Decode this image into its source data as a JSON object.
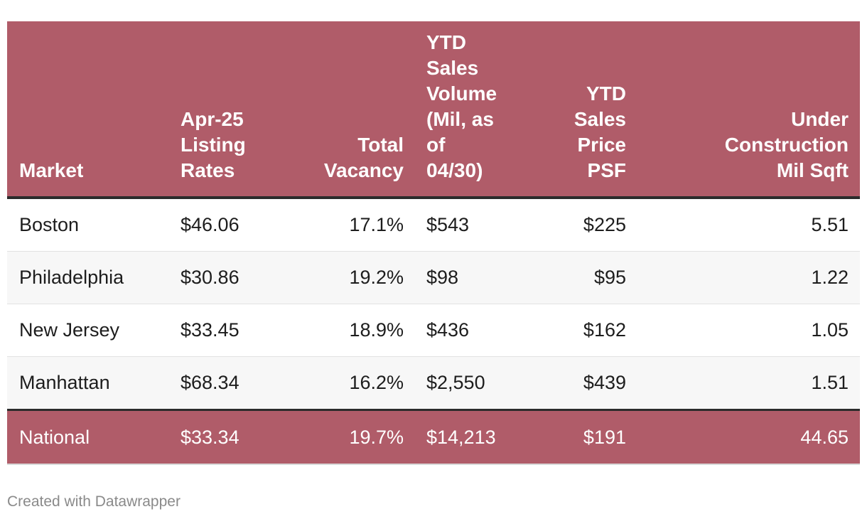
{
  "chart_data": {
    "type": "table",
    "columns": [
      {
        "key": "market",
        "label": "Market",
        "align": "left"
      },
      {
        "key": "listing",
        "label": "Apr-25 Listing Rates",
        "align": "left"
      },
      {
        "key": "vacancy",
        "label": "Total Vacancy",
        "align": "right"
      },
      {
        "key": "volume",
        "label": "YTD Sales Volume (Mil, as of 04/30)",
        "align": "left"
      },
      {
        "key": "price",
        "label": "YTD Sales Price PSF",
        "align": "right"
      },
      {
        "key": "construction",
        "label": "Under Construction Mil Sqft",
        "align": "right"
      }
    ],
    "header_lines": {
      "market": [
        "Market"
      ],
      "listing": [
        "Apr-25",
        "Listing",
        "Rates"
      ],
      "vacancy": [
        "Total",
        "Vacancy"
      ],
      "volume": [
        "YTD",
        "Sales",
        "Volume",
        "(Mil, as",
        "of",
        "04/30)"
      ],
      "price": [
        "YTD",
        "Sales",
        "Price",
        "PSF"
      ],
      "construction": [
        "Under",
        "Construction",
        "Mil Sqft"
      ]
    },
    "rows": [
      {
        "market": "Boston",
        "listing": "$46.06",
        "vacancy": "17.1%",
        "volume": "$543",
        "price": "$225",
        "construction": "5.51"
      },
      {
        "market": "Philadelphia",
        "listing": "$30.86",
        "vacancy": "19.2%",
        "volume": "$98",
        "price": "$95",
        "construction": "1.22"
      },
      {
        "market": "New Jersey",
        "listing": "$33.45",
        "vacancy": "18.9%",
        "volume": "$436",
        "price": "$162",
        "construction": "1.05"
      },
      {
        "market": "Manhattan",
        "listing": "$68.34",
        "vacancy": "16.2%",
        "volume": "$2,550",
        "price": "$439",
        "construction": "1.51"
      }
    ],
    "total_row": {
      "market": "National",
      "listing": "$33.34",
      "vacancy": "19.7%",
      "volume": "$14,213",
      "price": "$191",
      "construction": "44.65"
    },
    "colors": {
      "header_bg": "#b05c69",
      "header_text": "#ffffff",
      "stripe": "#f7f7f7",
      "rule": "#2b2b2b"
    }
  },
  "footer": {
    "credit": "Created with Datawrapper"
  }
}
